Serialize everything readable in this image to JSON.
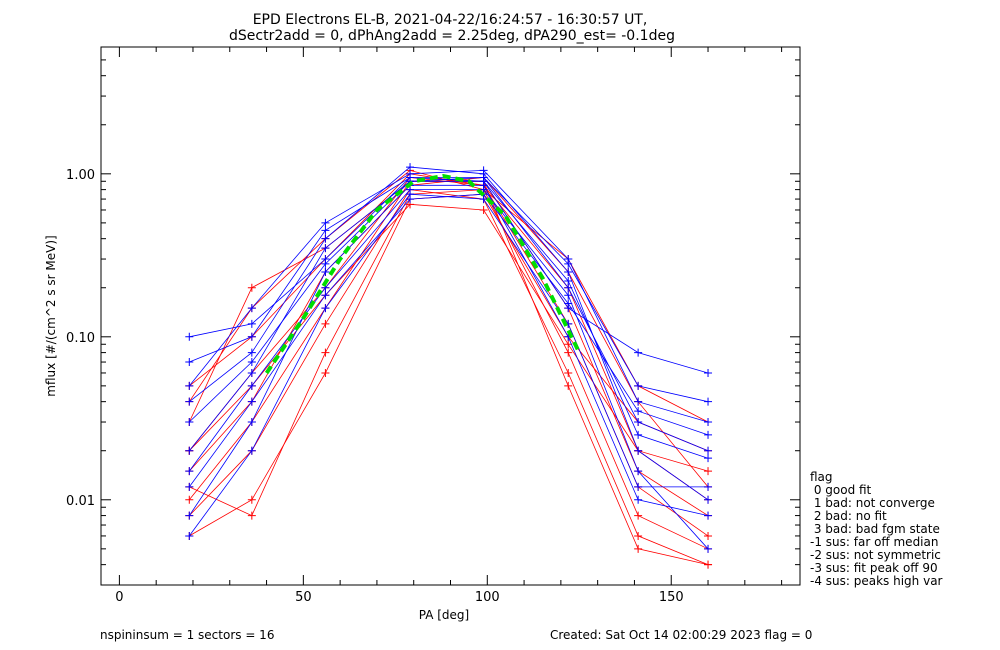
{
  "title_line1": "EPD Electrons EL-B, 2021-04-22/16:24:57 - 16:30:57 UT,",
  "title_line2": "dSectr2add = 0, dPhAng2add = 2.25deg, dPA290_est=  -0.1deg",
  "footer": {
    "left": "nspininsum =  1  sectors = 16",
    "right": "Created: Sat Oct 14 02:00:29 2023   flag = 0"
  },
  "legend": {
    "title": "flag",
    "items": [
      " 0 good fit",
      " 1 bad: not converge",
      " 2 bad: no fit",
      " 3 bad: bad fgm state",
      "-1 sus: far off median",
      "-2 sus: not symmetric",
      "-3 sus: fit peak off 90",
      "-4 sus: peaks high var"
    ]
  },
  "colors": {
    "series_a": "#ff0000",
    "series_b": "#0000ff",
    "fit": "#00dd00",
    "axis": "#000000"
  },
  "chart_data": {
    "type": "line",
    "xlabel": "PA [deg]",
    "ylabel": "mflux [#/(cm^2 s sr MeV)]",
    "xlim": [
      -5,
      185
    ],
    "ylim": [
      0.003,
      6
    ],
    "yscale": "log",
    "xticks": [
      0,
      50,
      100,
      150
    ],
    "xtick_labels": [
      "0",
      "50",
      "100",
      "150"
    ],
    "yticks": [
      0.01,
      0.1,
      1.0
    ],
    "ytick_labels": [
      "0.01",
      "0.10",
      "1.00"
    ],
    "pa_bins": [
      19,
      36,
      56,
      79,
      99,
      122,
      141,
      160
    ],
    "series": [
      {
        "color": "red",
        "curves": [
          [
            0.02,
            0.06,
            0.2,
            0.95,
            0.85,
            0.2,
            0.02,
            0.01
          ],
          [
            0.01,
            0.03,
            0.15,
            0.9,
            0.9,
            0.15,
            0.015,
            0.008
          ],
          [
            0.04,
            0.15,
            0.4,
            1.05,
            0.8,
            0.08,
            0.008,
            0.005
          ],
          [
            0.006,
            0.01,
            0.06,
            0.7,
            0.75,
            0.1,
            0.03,
            0.02
          ],
          [
            0.015,
            0.04,
            0.25,
            0.85,
            0.95,
            0.25,
            0.04,
            0.012
          ],
          [
            0.008,
            0.02,
            0.12,
            0.8,
            0.7,
            0.06,
            0.006,
            0.004
          ],
          [
            0.05,
            0.1,
            0.3,
            1.0,
            0.85,
            0.12,
            0.012,
            0.006
          ],
          [
            0.012,
            0.008,
            0.08,
            0.75,
            0.8,
            0.3,
            0.05,
            0.03
          ],
          [
            0.03,
            0.2,
            0.35,
            0.9,
            0.9,
            0.05,
            0.005,
            0.004
          ],
          [
            0.02,
            0.05,
            0.18,
            0.65,
            0.6,
            0.09,
            0.02,
            0.015
          ]
        ]
      },
      {
        "color": "blue",
        "curves": [
          [
            0.05,
            0.15,
            0.5,
            1.0,
            1.05,
            0.3,
            0.04,
            0.03
          ],
          [
            0.02,
            0.06,
            0.35,
            0.9,
            0.95,
            0.2,
            0.03,
            0.02
          ],
          [
            0.1,
            0.12,
            0.3,
            0.95,
            0.9,
            0.15,
            0.08,
            0.06
          ],
          [
            0.008,
            0.03,
            0.25,
            0.85,
            0.85,
            0.1,
            0.01,
            0.008
          ],
          [
            0.04,
            0.08,
            0.4,
            1.1,
            1.0,
            0.25,
            0.02,
            0.01
          ],
          [
            0.015,
            0.05,
            0.2,
            0.8,
            0.8,
            0.18,
            0.015,
            0.005
          ],
          [
            0.07,
            0.1,
            0.45,
            0.95,
            0.95,
            0.28,
            0.05,
            0.04
          ],
          [
            0.006,
            0.02,
            0.15,
            0.75,
            0.7,
            0.12,
            0.012,
            0.012
          ],
          [
            0.03,
            0.07,
            0.28,
            0.9,
            0.9,
            0.22,
            0.025,
            0.018
          ],
          [
            0.012,
            0.04,
            0.18,
            0.7,
            0.75,
            0.16,
            0.035,
            0.025
          ]
        ]
      },
      {
        "color": "green",
        "name": "fit",
        "x": [
          40,
          50,
          60,
          70,
          80,
          88,
          95,
          105,
          115,
          125
        ],
        "values": [
          0.06,
          0.13,
          0.3,
          0.6,
          0.9,
          0.97,
          0.9,
          0.55,
          0.23,
          0.08
        ]
      }
    ]
  }
}
